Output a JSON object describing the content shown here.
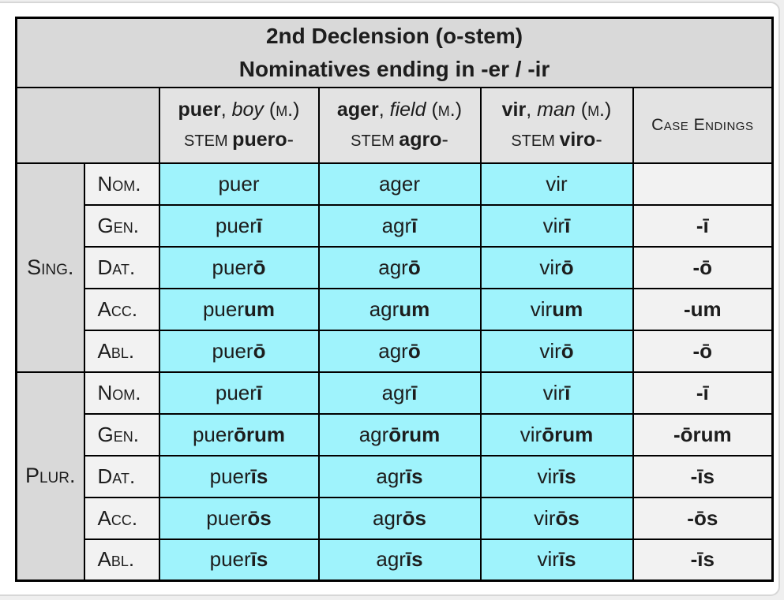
{
  "table": {
    "title_line1": "2nd Declension (o-stem)",
    "title_line2": "Nominatives ending in -er / -ir",
    "endings_header": "Case Endings",
    "columns": [
      {
        "word": "puer",
        "sep": ", ",
        "gloss": "boy",
        "gender": " (m.)",
        "stem_label": "STEM ",
        "stem": "puero",
        "stem_suffix": "-"
      },
      {
        "word": "ager",
        "sep": ", ",
        "gloss": "field",
        "gender": " (m.)",
        "stem_label": "STEM ",
        "stem": "agro",
        "stem_suffix": "-"
      },
      {
        "word": "vir",
        "sep": ", ",
        "gloss": "man",
        "gender": " (m.)",
        "stem_label": "STEM ",
        "stem": "viro",
        "stem_suffix": "-"
      }
    ],
    "groups": [
      {
        "label": "Sing."
      },
      {
        "label": "Plur."
      }
    ],
    "rows": [
      {
        "case": "Nom.",
        "words": [
          {
            "stem": "puer",
            "ending": ""
          },
          {
            "stem": "ager",
            "ending": ""
          },
          {
            "stem": "vir",
            "ending": ""
          }
        ],
        "case_ending": ""
      },
      {
        "case": "Gen.",
        "words": [
          {
            "stem": "puer",
            "ending": "ī"
          },
          {
            "stem": "agr",
            "ending": "ī"
          },
          {
            "stem": "vir",
            "ending": "ī"
          }
        ],
        "case_ending": "-ī"
      },
      {
        "case": "Dat.",
        "words": [
          {
            "stem": "puer",
            "ending": "ō"
          },
          {
            "stem": "agr",
            "ending": "ō"
          },
          {
            "stem": "vir",
            "ending": "ō"
          }
        ],
        "case_ending": "-ō"
      },
      {
        "case": "Acc.",
        "words": [
          {
            "stem": "puer",
            "ending": "um"
          },
          {
            "stem": "agr",
            "ending": "um"
          },
          {
            "stem": "vir",
            "ending": "um"
          }
        ],
        "case_ending": "-um"
      },
      {
        "case": "Abl.",
        "words": [
          {
            "stem": "puer",
            "ending": "ō"
          },
          {
            "stem": "agr",
            "ending": "ō"
          },
          {
            "stem": "vir",
            "ending": "ō"
          }
        ],
        "case_ending": "-ō"
      },
      {
        "case": "Nom.",
        "words": [
          {
            "stem": "puer",
            "ending": "ī"
          },
          {
            "stem": "agr",
            "ending": "ī"
          },
          {
            "stem": "vir",
            "ending": "ī"
          }
        ],
        "case_ending": "-ī"
      },
      {
        "case": "Gen.",
        "words": [
          {
            "stem": "puer",
            "ending": "ōrum"
          },
          {
            "stem": "agr",
            "ending": "ōrum"
          },
          {
            "stem": "vir",
            "ending": "ōrum"
          }
        ],
        "case_ending": "-ōrum"
      },
      {
        "case": "Dat.",
        "words": [
          {
            "stem": "puer",
            "ending": "īs"
          },
          {
            "stem": "agr",
            "ending": "īs"
          },
          {
            "stem": "vir",
            "ending": "īs"
          }
        ],
        "case_ending": "-īs"
      },
      {
        "case": "Acc.",
        "words": [
          {
            "stem": "puer",
            "ending": "ōs"
          },
          {
            "stem": "agr",
            "ending": "ōs"
          },
          {
            "stem": "vir",
            "ending": "ōs"
          }
        ],
        "case_ending": "-ōs"
      },
      {
        "case": "Abl.",
        "words": [
          {
            "stem": "puer",
            "ending": "īs"
          },
          {
            "stem": "agr",
            "ending": "īs"
          },
          {
            "stem": "vir",
            "ending": "īs"
          }
        ],
        "case_ending": "-īs"
      }
    ],
    "colors": {
      "data_cell_cyan": "#9ff3fc",
      "title_gray": "#d9d9d9",
      "noun_header_gray": "#e3e3e3",
      "label_light_gray": "#f2f2f2",
      "grid_black": "#000000"
    }
  }
}
